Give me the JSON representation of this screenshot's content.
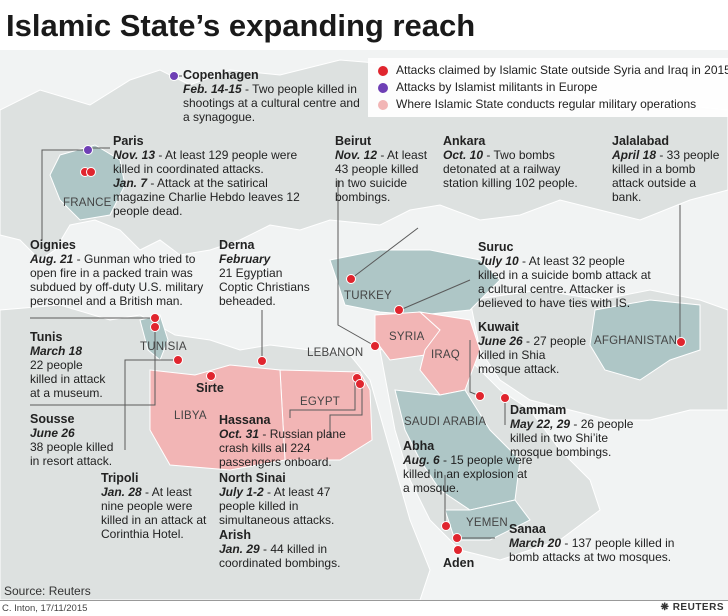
{
  "title": "Islamic State’s expanding reach",
  "legend": [
    {
      "label": "Attacks claimed by Islamic State outside Syria and Iraq in 2015",
      "color": "#e0252e"
    },
    {
      "label": "Attacks by Islamist militants in Europe",
      "color": "#6e3fb5"
    },
    {
      "label": "Where Islamic State conducts regular military operations",
      "color": "#f2b5b5"
    }
  ],
  "countries": {
    "france": "FRANCE",
    "tunisia": "TUNISIA",
    "libya": "LIBYA",
    "egypt": "EGYPT",
    "lebanon": "LEBANON",
    "turkey": "TURKEY",
    "syria": "SYRIA",
    "iraq": "IRAQ",
    "saudi": "SAUDI ARABIA",
    "yemen": "YEMEN",
    "afghanistan": "AFGHANISTAN"
  },
  "cities": {
    "sirte": "Sirte",
    "aden": "Aden"
  },
  "events": {
    "copenhagen": {
      "place": "Copenhagen",
      "date": "Feb. 14-15",
      "text": " - Two people killed in shootings at a cultural centre and a synagogue."
    },
    "paris": {
      "place": "Paris",
      "date": "Nov. 13",
      "text": " - At least 129 people were killed in coordinated attacks."
    },
    "paris_jan": {
      "date": "Jan. 7",
      "text": " - Attack at the satirical magazine Charlie Hebdo leaves 12 people dead."
    },
    "oignies": {
      "place": "Oignies",
      "date": "Aug. 21",
      "text": " - Gunman who tried to open fire in a packed train was subdued by off-duty U.S. military personnel and a British man."
    },
    "derna": {
      "place": "Derna",
      "date": "February",
      "text": "21 Egyptian Coptic Christians beheaded."
    },
    "tunis": {
      "place": "Tunis",
      "date": "March 18",
      "text": "22 people killed in attack at a museum."
    },
    "sousse": {
      "place": "Sousse",
      "date": "June 26",
      "text": "38 people killed in resort attack."
    },
    "tripoli": {
      "place": "Tripoli",
      "date": "Jan. 28",
      "text": " - At least nine people were killed in an attack at Corinthia Hotel."
    },
    "hassana": {
      "place": "Hassana",
      "date": "Oct. 31",
      "text": " - Russian plane crash kills all 224 passengers onboard."
    },
    "north_sinai": {
      "place": "North Sinai",
      "date": "July 1-2",
      "text": " - At least 47 people killed in simultaneous attacks."
    },
    "arish": {
      "place": "Arish",
      "date": "Jan. 29",
      "text": " - 44 killed in coordinated bombings."
    },
    "beirut": {
      "place": "Beirut",
      "date": "Nov. 12",
      "text": " - At least 43 people killed in two suicide bombings."
    },
    "ankara": {
      "place": "Ankara",
      "date": "Oct. 10",
      "text": " - Two bombs detonated at a railway station killing 102 people."
    },
    "jalalabad": {
      "place": "Jalalabad",
      "date": "April 18",
      "text": " - 33 people killed in a bomb attack outside a bank."
    },
    "suruc": {
      "place": "Suruc",
      "date": "July 10",
      "text": " - At least 32 people killed in a suicide bomb attack at a cultural centre. Attacker is believed to have ties with IS."
    },
    "kuwait": {
      "place": "Kuwait",
      "date": "June 26",
      "text": " - 27 people killed in Shia mosque attack."
    },
    "dammam": {
      "place": "Dammam",
      "date": "May 22, 29",
      "text": " - 26 people killed in two Shi’ite mosque bombings."
    },
    "abha": {
      "place": "Abha",
      "date": "Aug. 6",
      "text": " - 15 people were killed in an explosion at a mosque."
    },
    "sanaa": {
      "place": "Sanaa",
      "date": "March 20",
      "text": " - 137 people killed in bomb attacks at two mosques."
    }
  },
  "source": "Source: Reuters",
  "credit": "C. Inton, 17/11/2015",
  "brand": "REUTERS",
  "colors": {
    "land": "#dde1e0",
    "sea": "#f3f4f4",
    "highlight": "#aec6c6",
    "is_zone": "#f2b5b5",
    "attack": "#e0252e",
    "europe": "#6e3fb5",
    "line": "#5a5a5a"
  }
}
